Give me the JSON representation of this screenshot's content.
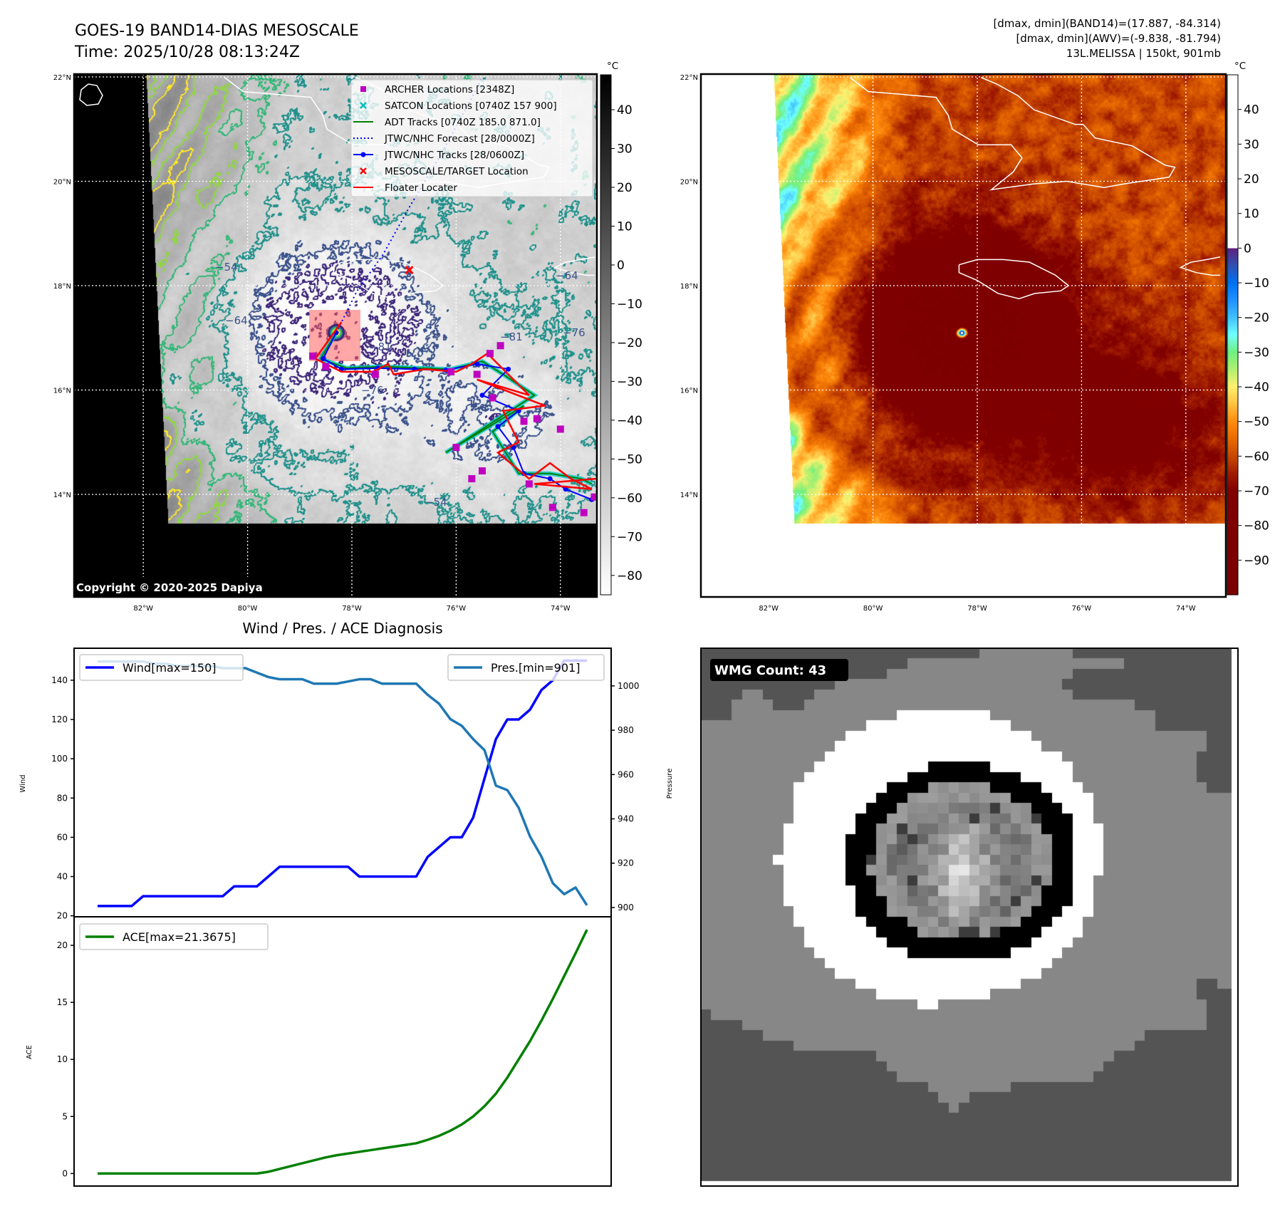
{
  "left_map": {
    "title_line1": "GOES-19 BAND14-DIAS MESOSCALE",
    "title_line2": "Time: 2025/10/28 08:13:24Z",
    "colorbar_unit": "°C",
    "colorbar_ticks": [
      "40",
      "30",
      "20",
      "10",
      "0",
      "−10",
      "−20",
      "−30",
      "−40",
      "−50",
      "−60",
      "−70",
      "−80"
    ],
    "colorbar_values": [
      40,
      30,
      20,
      10,
      0,
      -10,
      -20,
      -30,
      -40,
      -50,
      -60,
      -70,
      -80
    ],
    "colorbar_range": [
      -85,
      49
    ],
    "lat_labels": [
      "22°N",
      "20°N",
      "18°N",
      "16°N",
      "14°N"
    ],
    "lat_values": [
      22,
      20,
      18,
      16,
      14
    ],
    "lon_labels": [
      "82°W",
      "80°W",
      "78°W",
      "76°W",
      "74°W"
    ],
    "lon_values": [
      82,
      80,
      78,
      76,
      74
    ],
    "contour_labels": [
      "−54",
      "−64",
      "−76",
      "−81",
      "−64",
      "−76",
      "−81",
      "−54"
    ],
    "copyright": "Copyright © 2020-2025 Dapiya",
    "legend": [
      {
        "label": "ARCHER Locations [2348Z]",
        "color": "#c000c0",
        "kind": "square"
      },
      {
        "label": "SATCON Locations [0740Z 157 900]",
        "color": "#00c0c0",
        "kind": "x"
      },
      {
        "label": "ADT Tracks [0740Z 185.0 871.0]",
        "color": "#008000",
        "kind": "line"
      },
      {
        "label": "JTWC/NHC Forecast [28/0000Z]",
        "color": "#0000ff",
        "kind": "dotted"
      },
      {
        "label": "JTWC/NHC Tracks [28/0600Z]",
        "color": "#0000ff",
        "kind": "line-dot"
      },
      {
        "label": "MESOSCALE/TARGET Location",
        "color": "#ff0000",
        "kind": "x"
      },
      {
        "label": "Floater Locater",
        "color": "#ff0000",
        "kind": "line"
      }
    ]
  },
  "right_map": {
    "info_lines": [
      "[dmax, dmin](BAND14)=(17.887, -84.314)",
      "[dmax, dmin](AWV)=(-9.838, -81.794)",
      "13L.MELISSA | 150kt, 901mb"
    ],
    "colorbar_unit": "°C",
    "colorbar_ticks": [
      "40",
      "30",
      "20",
      "10",
      "0",
      "−10",
      "−20",
      "−30",
      "−40",
      "−50",
      "−60",
      "−70",
      "−80",
      "−90"
    ],
    "colorbar_values": [
      40,
      30,
      20,
      10,
      0,
      -10,
      -20,
      -30,
      -40,
      -50,
      -60,
      -70,
      -80,
      -90
    ],
    "colorbar_range": [
      -100,
      50
    ],
    "lat_labels": [
      "22°N",
      "20°N",
      "18°N",
      "16°N",
      "14°N"
    ],
    "lon_labels": [
      "82°W",
      "80°W",
      "78°W",
      "76°W",
      "74°W"
    ]
  },
  "tracks": {
    "storm_center": [
      78.3,
      17.1
    ],
    "target_location": [
      76.9,
      18.3
    ],
    "jtwc_track": [
      [
        78.3,
        17.1
      ],
      [
        78.55,
        16.6
      ],
      [
        78.2,
        16.4
      ],
      [
        77.5,
        16.42
      ],
      [
        76.8,
        16.4
      ],
      [
        76.2,
        16.38
      ],
      [
        75.6,
        16.5
      ],
      [
        75.0,
        16.4
      ],
      [
        75.5,
        15.9
      ],
      [
        74.8,
        15.6
      ],
      [
        75.2,
        15.3
      ],
      [
        74.9,
        14.9
      ],
      [
        74.7,
        14.4
      ],
      [
        74.2,
        14.3
      ],
      [
        73.9,
        14.1
      ],
      [
        73.4,
        13.9
      ]
    ],
    "jtwc_forecast": [
      [
        78.3,
        17.1
      ],
      [
        77.9,
        17.9
      ],
      [
        77.4,
        18.6
      ],
      [
        76.9,
        19.5
      ],
      [
        76.3,
        20.5
      ],
      [
        75.7,
        21.6
      ],
      [
        75.5,
        22.0
      ]
    ],
    "adt_track": [
      [
        78.3,
        17.1
      ],
      [
        78.6,
        16.6
      ],
      [
        78.1,
        16.42
      ],
      [
        77.4,
        16.45
      ],
      [
        76.7,
        16.42
      ],
      [
        76.1,
        16.4
      ],
      [
        75.5,
        16.55
      ],
      [
        75.1,
        16.3
      ],
      [
        74.5,
        15.9
      ],
      [
        76.2,
        14.8
      ],
      [
        74.7,
        15.7
      ],
      [
        75.3,
        15.2
      ],
      [
        74.8,
        14.4
      ],
      [
        74.2,
        14.4
      ],
      [
        73.6,
        14.3
      ],
      [
        73.4,
        14.2
      ]
    ],
    "floater": [
      [
        78.2,
        17.3
      ],
      [
        78.7,
        16.6
      ],
      [
        78.2,
        16.35
      ],
      [
        77.6,
        16.35
      ],
      [
        77.3,
        16.5
      ],
      [
        77.2,
        16.3
      ],
      [
        76.6,
        16.4
      ],
      [
        76.0,
        16.35
      ],
      [
        75.7,
        16.5
      ],
      [
        75.4,
        16.7
      ],
      [
        75.0,
        16.3
      ],
      [
        74.6,
        15.9
      ],
      [
        75.6,
        16.2
      ],
      [
        74.3,
        15.7
      ],
      [
        75.1,
        15.6
      ],
      [
        74.8,
        15.0
      ],
      [
        75.2,
        14.8
      ],
      [
        74.6,
        14.3
      ],
      [
        74.2,
        14.6
      ],
      [
        73.8,
        14.3
      ],
      [
        73.4,
        14.1
      ],
      [
        74.5,
        14.2
      ],
      [
        73.3,
        14.3
      ]
    ],
    "archer": [
      [
        78.75,
        16.65
      ],
      [
        78.5,
        16.45
      ],
      [
        77.55,
        16.3
      ],
      [
        76.1,
        16.35
      ],
      [
        75.35,
        16.7
      ],
      [
        75.15,
        16.85
      ],
      [
        75.6,
        16.3
      ],
      [
        75.3,
        15.85
      ],
      [
        74.7,
        15.4
      ],
      [
        74.45,
        15.45
      ],
      [
        74.0,
        15.25
      ],
      [
        75.7,
        14.3
      ],
      [
        75.5,
        14.45
      ],
      [
        74.6,
        14.2
      ],
      [
        74.15,
        13.75
      ],
      [
        73.55,
        13.65
      ],
      [
        73.35,
        13.95
      ],
      [
        76.0,
        14.9
      ]
    ]
  },
  "chart_data": {
    "type": "line",
    "title": "Wind / Pres. / ACE Diagnosis",
    "x": [
      0,
      1,
      2,
      3,
      4,
      5,
      6,
      7,
      8,
      9,
      10,
      11,
      12,
      13,
      14,
      15,
      16,
      17,
      18,
      19,
      20,
      21,
      22,
      23,
      24,
      25,
      26,
      27,
      28,
      29,
      30,
      31,
      32,
      33,
      34,
      35,
      36,
      37,
      38,
      39,
      40,
      41,
      42,
      43
    ],
    "wind": {
      "legend": "Wind[max=150]",
      "ylabel": "Wind",
      "color": "#0000ff",
      "ylim": [
        19.5,
        156.3
      ],
      "ticks": [
        20,
        40,
        60,
        80,
        100,
        120,
        140
      ],
      "tick_labels": [
        "20",
        "40",
        "60",
        "80",
        "100",
        "120",
        "140"
      ],
      "values": [
        25,
        25,
        25,
        25,
        30,
        30,
        30,
        30,
        30,
        30,
        30,
        30,
        35,
        35,
        35,
        40,
        45,
        45,
        45,
        45,
        45,
        45,
        45,
        40,
        40,
        40,
        40,
        40,
        40,
        50,
        55,
        60,
        60,
        70,
        90,
        110,
        120,
        120,
        125,
        135,
        140,
        150,
        150,
        150
      ]
    },
    "pressure": {
      "legend": "Pres.[min=901]",
      "ylabel": "Pressure",
      "color": "#1f77b4",
      "ylim": [
        895.8,
        1017
      ],
      "ticks": [
        900,
        920,
        940,
        960,
        980,
        1000
      ],
      "tick_labels": [
        "900",
        "920",
        "940",
        "960",
        "980",
        "1000"
      ],
      "values": [
        1011,
        1011,
        1011,
        1011,
        1011,
        1010,
        1010,
        1009,
        1009,
        1009,
        1009,
        1008,
        1008,
        1008,
        1006,
        1004,
        1003,
        1003,
        1003,
        1001,
        1001,
        1001,
        1002,
        1003,
        1003,
        1001,
        1001,
        1001,
        1001,
        996,
        992,
        985,
        982,
        976,
        971,
        955,
        953,
        945,
        932,
        923,
        911,
        906,
        909,
        901
      ]
    },
    "ace": {
      "legend": "ACE[max=21.3675]",
      "ylabel": "ACE",
      "color": "#008000",
      "ylim": [
        -1.1,
        22.5
      ],
      "ticks": [
        0,
        5,
        10,
        15,
        20
      ],
      "tick_labels": [
        "0",
        "5",
        "10",
        "15",
        "20"
      ],
      "values": [
        0,
        0,
        0,
        0,
        0,
        0,
        0,
        0,
        0,
        0,
        0,
        0,
        0,
        0,
        0,
        0.15,
        0.4,
        0.65,
        0.9,
        1.15,
        1.4,
        1.6,
        1.75,
        1.9,
        2.05,
        2.2,
        2.35,
        2.5,
        2.65,
        2.95,
        3.3,
        3.75,
        4.3,
        5.0,
        5.9,
        7.0,
        8.4,
        10.0,
        11.6,
        13.4,
        15.3,
        17.3,
        19.3,
        21.3675
      ]
    }
  },
  "wmg": {
    "label": "WMG Count: 43",
    "colors": {
      "white": "#ffffff",
      "black": "#000000",
      "light": "#878787",
      "dark": "#545454"
    }
  }
}
